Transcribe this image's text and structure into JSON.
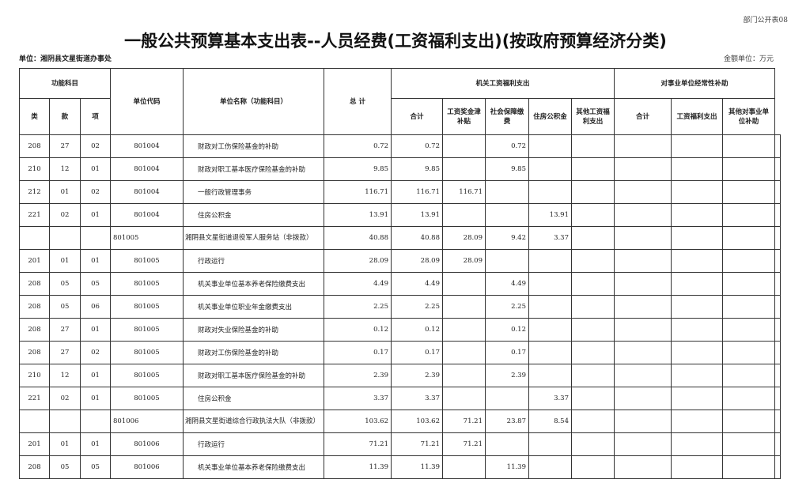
{
  "tag": "部门公开表08",
  "title": "一般公共预算基本支出表--人员经费(工资福利支出)(按政府预算经济分类)",
  "unit": "单位：湘阴县文星街道办事处",
  "money_unit": "金额单位：万元",
  "headers": {
    "func": "功能科目",
    "lei": "类",
    "kuan": "款",
    "xiang": "项",
    "code": "单位代码",
    "name": "单位名称（功能科目）",
    "total": "总 计",
    "jiguan": "机关工资福利支出",
    "shiye": "对事业单位经常性补助",
    "heji": "合计",
    "gongzi": "工资奖金津补贴",
    "shebao": "社会保障缴费",
    "zhufang": "住房公积金",
    "qita": "其他工资福利支出",
    "heji2": "合计",
    "gzfl": "工资福利支出",
    "qita2": "其他对事业单位补助"
  },
  "rows": [
    [
      "208",
      "27",
      "02",
      "801004",
      "财政对工伤保险基金的补助",
      "0.72",
      "0.72",
      "",
      "0.72",
      "",
      "",
      "",
      "",
      "",
      ""
    ],
    [
      "210",
      "12",
      "01",
      "801004",
      "财政对职工基本医疗保险基金的补助",
      "9.85",
      "9.85",
      "",
      "9.85",
      "",
      "",
      "",
      "",
      "",
      ""
    ],
    [
      "212",
      "01",
      "02",
      "801004",
      "一般行政管理事务",
      "116.71",
      "116.71",
      "116.71",
      "",
      "",
      "",
      "",
      "",
      "",
      ""
    ],
    [
      "221",
      "02",
      "01",
      "801004",
      "住房公积金",
      "13.91",
      "13.91",
      "",
      "",
      "13.91",
      "",
      "",
      "",
      "",
      ""
    ],
    [
      "",
      "",
      "",
      "801005",
      "湘阴县文星街道退役军人服务站（非拨款）",
      "40.88",
      "40.88",
      "28.09",
      "9.42",
      "3.37",
      "",
      "",
      "",
      "",
      ""
    ],
    [
      "201",
      "01",
      "01",
      "801005",
      "行政运行",
      "28.09",
      "28.09",
      "28.09",
      "",
      "",
      "",
      "",
      "",
      "",
      ""
    ],
    [
      "208",
      "05",
      "05",
      "801005",
      "机关事业单位基本养老保险缴费支出",
      "4.49",
      "4.49",
      "",
      "4.49",
      "",
      "",
      "",
      "",
      "",
      ""
    ],
    [
      "208",
      "05",
      "06",
      "801005",
      "机关事业单位职业年金缴费支出",
      "2.25",
      "2.25",
      "",
      "2.25",
      "",
      "",
      "",
      "",
      "",
      ""
    ],
    [
      "208",
      "27",
      "01",
      "801005",
      "财政对失业保险基金的补助",
      "0.12",
      "0.12",
      "",
      "0.12",
      "",
      "",
      "",
      "",
      "",
      ""
    ],
    [
      "208",
      "27",
      "02",
      "801005",
      "财政对工伤保险基金的补助",
      "0.17",
      "0.17",
      "",
      "0.17",
      "",
      "",
      "",
      "",
      "",
      ""
    ],
    [
      "210",
      "12",
      "01",
      "801005",
      "财政对职工基本医疗保险基金的补助",
      "2.39",
      "2.39",
      "",
      "2.39",
      "",
      "",
      "",
      "",
      "",
      ""
    ],
    [
      "221",
      "02",
      "01",
      "801005",
      "住房公积金",
      "3.37",
      "3.37",
      "",
      "",
      "3.37",
      "",
      "",
      "",
      "",
      ""
    ],
    [
      "",
      "",
      "",
      "801006",
      "湘阴县文星街道综合行政执法大队（非拨款）",
      "103.62",
      "103.62",
      "71.21",
      "23.87",
      "8.54",
      "",
      "",
      "",
      "",
      ""
    ],
    [
      "201",
      "01",
      "01",
      "801006",
      "行政运行",
      "71.21",
      "71.21",
      "71.21",
      "",
      "",
      "",
      "",
      "",
      "",
      ""
    ],
    [
      "208",
      "05",
      "05",
      "801006",
      "机关事业单位基本养老保险缴费支出",
      "11.39",
      "11.39",
      "",
      "11.39",
      "",
      "",
      "",
      "",
      "",
      ""
    ]
  ]
}
